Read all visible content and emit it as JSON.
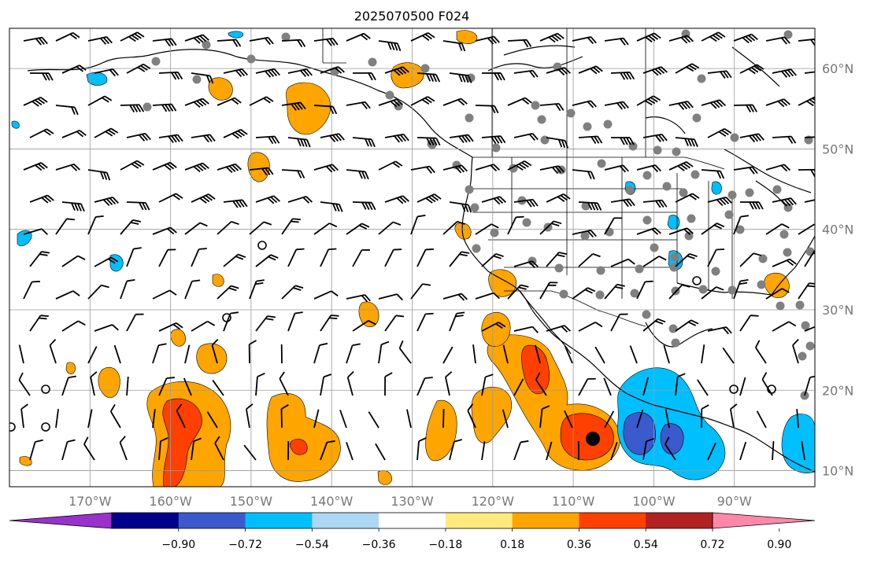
{
  "title": "2025070500 F024",
  "map": {
    "lon_range": [
      -180,
      -80
    ],
    "lat_range": [
      8,
      65
    ],
    "grid": true,
    "lon_labels": [
      "170°W",
      "160°W",
      "150°W",
      "140°W",
      "130°W",
      "120°W",
      "110°W",
      "100°W",
      "90°W"
    ],
    "lon_values": [
      -170,
      -160,
      -150,
      -140,
      -130,
      -120,
      -110,
      -100,
      -90
    ],
    "lat_labels": [
      "60°N",
      "50°N",
      "40°N",
      "30°N",
      "20°N",
      "10°N"
    ],
    "lat_values": [
      60,
      50,
      40,
      30,
      20,
      10
    ],
    "features": [
      "coastlines",
      "country-borders",
      "state-borders",
      "wind-barbs",
      "station-dots",
      "filled-contours"
    ]
  },
  "colorbar": {
    "orientation": "horizontal",
    "extend": "both",
    "tick_labels": [
      "−0.90",
      "−0.72",
      "−0.54",
      "−0.36",
      "−0.18",
      "0.18",
      "0.36",
      "0.54",
      "0.72",
      "0.90"
    ],
    "colors": [
      "#9932cc",
      "#00008b",
      "#3a5acd",
      "#00bfff",
      "#add8f5",
      "#ffffff",
      "#ffea80",
      "#ffa500",
      "#ff4000",
      "#b22222",
      "#ff88aa"
    ]
  }
}
